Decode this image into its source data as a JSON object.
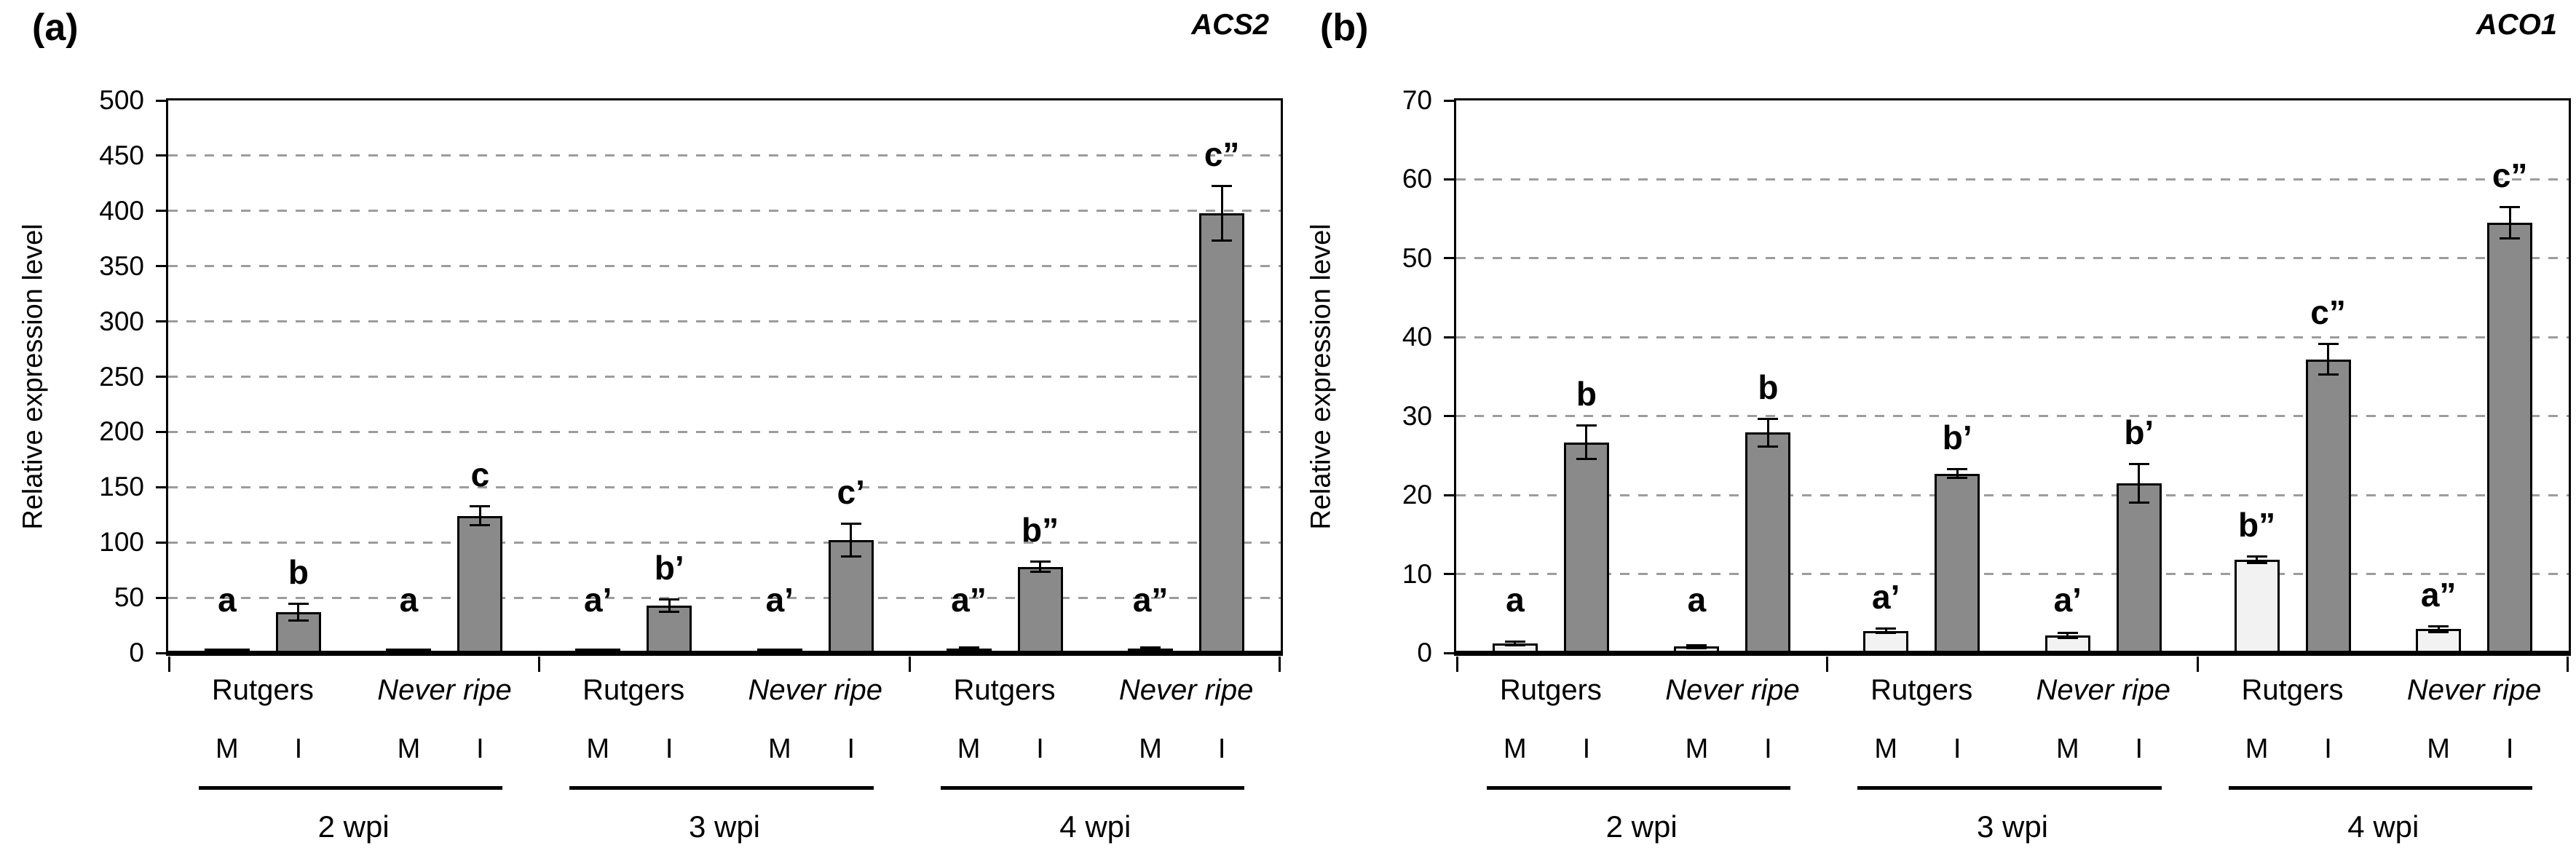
{
  "colors": {
    "bar_fill_I": "#8a8a8a",
    "bar_fill_M": "#f2f2f2",
    "bar_border": "#000000",
    "gridline": "#9c9c9c",
    "axis": "#000000"
  },
  "chart_data": [
    {
      "type": "bar",
      "panel_label": "(a)",
      "title": "ACS2",
      "ylabel": "Relative expression level",
      "ylim": [
        0,
        500
      ],
      "ytick_step": 50,
      "yticks": [
        0,
        50,
        100,
        150,
        200,
        250,
        300,
        350,
        400,
        450,
        500
      ],
      "grid": "horizontal-dashed",
      "legend": "none",
      "group_labels": [
        "2 wpi",
        "3 wpi",
        "4 wpi"
      ],
      "cultivars": [
        {
          "text": "Rutgers",
          "italic": false
        },
        {
          "text": "Never ripe",
          "italic": true
        }
      ],
      "treatment_labels": [
        "M",
        "I"
      ],
      "bars": [
        {
          "group": "2 wpi",
          "cultivar": "Rutgers",
          "treatment": "M",
          "value": 2,
          "error": 0,
          "letter": "a"
        },
        {
          "group": "2 wpi",
          "cultivar": "Rutgers",
          "treatment": "I",
          "value": 37,
          "error": 8,
          "letter": "b"
        },
        {
          "group": "2 wpi",
          "cultivar": "Never ripe",
          "treatment": "M",
          "value": 2,
          "error": 0,
          "letter": "a"
        },
        {
          "group": "2 wpi",
          "cultivar": "Never ripe",
          "treatment": "I",
          "value": 124,
          "error": 9,
          "letter": "c"
        },
        {
          "group": "3 wpi",
          "cultivar": "Rutgers",
          "treatment": "M",
          "value": 2,
          "error": 0,
          "letter": "a’"
        },
        {
          "group": "3 wpi",
          "cultivar": "Rutgers",
          "treatment": "I",
          "value": 43,
          "error": 6,
          "letter": "b’"
        },
        {
          "group": "3 wpi",
          "cultivar": "Never ripe",
          "treatment": "M",
          "value": 2,
          "error": 0,
          "letter": "a’"
        },
        {
          "group": "3 wpi",
          "cultivar": "Never ripe",
          "treatment": "I",
          "value": 102,
          "error": 15,
          "letter": "c’"
        },
        {
          "group": "4 wpi",
          "cultivar": "Rutgers",
          "treatment": "M",
          "value": 4,
          "error": 1,
          "letter": "a”"
        },
        {
          "group": "4 wpi",
          "cultivar": "Rutgers",
          "treatment": "I",
          "value": 78,
          "error": 5,
          "letter": "b”"
        },
        {
          "group": "4 wpi",
          "cultivar": "Never ripe",
          "treatment": "M",
          "value": 4,
          "error": 1,
          "letter": "a”"
        },
        {
          "group": "4 wpi",
          "cultivar": "Never ripe",
          "treatment": "I",
          "value": 398,
          "error": 25,
          "letter": "c”"
        }
      ]
    },
    {
      "type": "bar",
      "panel_label": "(b)",
      "title": "ACO1",
      "ylabel": "Relative expression level",
      "ylim": [
        0,
        70
      ],
      "ytick_step": 10,
      "yticks": [
        0,
        10,
        20,
        30,
        40,
        50,
        60,
        70
      ],
      "grid": "horizontal-dashed",
      "legend": "none",
      "group_labels": [
        "2 wpi",
        "3 wpi",
        "4 wpi"
      ],
      "cultivars": [
        {
          "text": "Rutgers",
          "italic": false
        },
        {
          "text": "Never ripe",
          "italic": true
        }
      ],
      "treatment_labels": [
        "M",
        "I"
      ],
      "bars": [
        {
          "group": "2 wpi",
          "cultivar": "Rutgers",
          "treatment": "M",
          "value": 1.2,
          "error": 0.3,
          "letter": "a"
        },
        {
          "group": "2 wpi",
          "cultivar": "Rutgers",
          "treatment": "I",
          "value": 26.7,
          "error": 2.2,
          "letter": "b"
        },
        {
          "group": "2 wpi",
          "cultivar": "Never ripe",
          "treatment": "M",
          "value": 0.8,
          "error": 0.2,
          "letter": "a"
        },
        {
          "group": "2 wpi",
          "cultivar": "Never ripe",
          "treatment": "I",
          "value": 27.9,
          "error": 1.8,
          "letter": "b"
        },
        {
          "group": "3 wpi",
          "cultivar": "Rutgers",
          "treatment": "M",
          "value": 2.8,
          "error": 0.3,
          "letter": "a’"
        },
        {
          "group": "3 wpi",
          "cultivar": "Rutgers",
          "treatment": "I",
          "value": 22.7,
          "error": 0.6,
          "letter": "b’"
        },
        {
          "group": "3 wpi",
          "cultivar": "Never ripe",
          "treatment": "M",
          "value": 2.2,
          "error": 0.4,
          "letter": "a’"
        },
        {
          "group": "3 wpi",
          "cultivar": "Never ripe",
          "treatment": "I",
          "value": 21.5,
          "error": 2.5,
          "letter": "b’"
        },
        {
          "group": "4 wpi",
          "cultivar": "Rutgers",
          "treatment": "M",
          "value": 11.8,
          "error": 0.5,
          "letter": "b”"
        },
        {
          "group": "4 wpi",
          "cultivar": "Rutgers",
          "treatment": "I",
          "value": 37.2,
          "error": 2,
          "letter": "c”"
        },
        {
          "group": "4 wpi",
          "cultivar": "Never ripe",
          "treatment": "M",
          "value": 3,
          "error": 0.4,
          "letter": "a”"
        },
        {
          "group": "4 wpi",
          "cultivar": "Never ripe",
          "treatment": "I",
          "value": 54.5,
          "error": 2,
          "letter": "c”"
        }
      ]
    }
  ]
}
